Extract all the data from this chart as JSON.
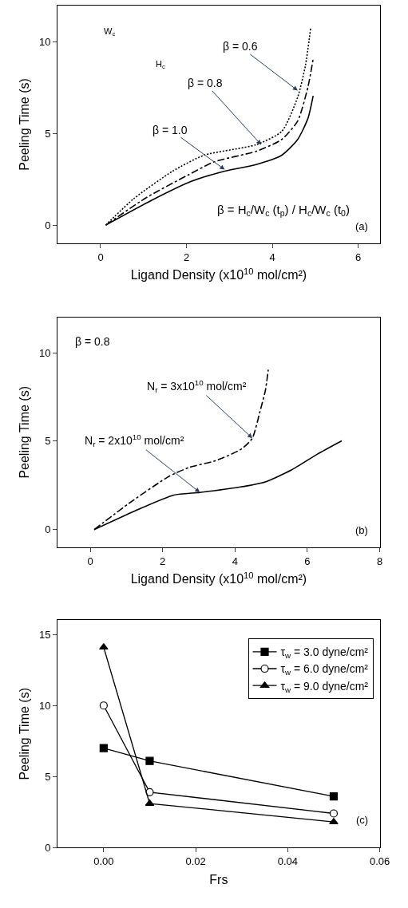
{
  "chart_data": [
    {
      "type": "line",
      "xlabel": "Ligand Density (x10$^{10}$ mol/cm²)",
      "ylabel": "Peeling Time (s)",
      "xlim": [
        -1,
        6.5
      ],
      "xticks": [
        0,
        2,
        4,
        6
      ],
      "ylim": [
        -1,
        12
      ],
      "yticks": [
        0,
        5,
        10
      ],
      "legend": false,
      "marker": "none",
      "series": [
        {
          "color": "#000000",
          "line_style": "solid",
          "x": [
            0.12,
            1.2,
            2.1,
            2.89,
            3.62,
            4.22,
            4.59,
            4.83,
            4.95
          ],
          "values": [
            0,
            1.37,
            2.38,
            2.95,
            3.31,
            3.82,
            4.68,
            5.84,
            7.06
          ]
        },
        {
          "color": "#000000",
          "line_style": "dashdot",
          "x": [
            0.12,
            1.07,
            2.04,
            2.65,
            3.62,
            4.22,
            4.59,
            4.83,
            4.95
          ],
          "values": [
            0,
            1.51,
            2.74,
            3.46,
            4.03,
            4.68,
            5.69,
            7.56,
            9.08
          ]
        },
        {
          "color": "#000000",
          "line_style": "dotted",
          "x": [
            0.12,
            0.77,
            1.68,
            2.41,
            3.62,
            4.22,
            4.59,
            4.77,
            4.89
          ],
          "values": [
            0,
            1.44,
            2.95,
            3.82,
            4.39,
            5.12,
            6.99,
            8.72,
            10.73
          ]
        }
      ],
      "annotations": [
        {
          "text": "β = 0.6",
          "x": 4.59,
          "y": 7.35
        },
        {
          "text": "β = 0.8",
          "x": 3.74,
          "y": 4.39
        },
        {
          "text": "β = 1.0",
          "x": 2.89,
          "y": 3.03
        },
        "β = H$_{c}$/W$_{c}$ (t$_{p}$) / H$_{c}$/W$_{c}$ (t$_{0}$)",
        "(a)",
        "W$_{c}$",
        "H$_{c}$"
      ]
    },
    {
      "type": "line",
      "xlabel": "Ligand Density (x10$^{10}$ mol/cm²)",
      "ylabel": "Peeling Time (s)",
      "xlim": [
        -0.9,
        8
      ],
      "xticks": [
        0,
        2,
        4,
        6,
        8
      ],
      "ylim": [
        -1,
        12
      ],
      "yticks": [
        0,
        5,
        10
      ],
      "legend": false,
      "marker": "none",
      "series": [
        {
          "color": "#000000",
          "line_style": "solid",
          "x": [
            0.11,
            1.23,
            2.31,
            3.03,
            4.12,
            4.84,
            5.56,
            6.28,
            6.95
          ],
          "values": [
            0,
            1.05,
            1.95,
            2.1,
            2.4,
            2.7,
            3.37,
            4.27,
            5.02
          ]
        },
        {
          "color": "#000000",
          "line_style": "dashdot",
          "x": [
            0.11,
            1.08,
            2.17,
            2.74,
            3.47,
            4.19,
            4.48,
            4.69,
            4.84,
            4.92
          ],
          "values": [
            0,
            1.5,
            3.0,
            3.52,
            3.9,
            4.57,
            5.17,
            6.67,
            7.87,
            9.04
          ]
        }
      ],
      "annotations": [
        {
          "text": "N$_{r}$ = 3x10$^{10}$ mol/cm²",
          "x": 4.48,
          "y": 5.17
        },
        {
          "text": "N$_{r}$ = 2x10$^{10}$ mol/cm²",
          "x": 3.03,
          "y": 2.1
        },
        "β = 0.8",
        "(b)"
      ]
    },
    {
      "type": "line",
      "xlabel": "Frs",
      "ylabel": "Peeling Time (s)",
      "x": [
        0,
        0.01,
        0.05
      ],
      "xlim": [
        -0.01,
        0.06
      ],
      "xticks": [
        {
          "value": 0,
          "label": "0.00"
        },
        {
          "value": 0.02,
          "label": "0.02"
        },
        {
          "value": 0.04,
          "label": "0.04"
        },
        {
          "value": 0.06,
          "label": "0.06"
        }
      ],
      "ylim": [
        0,
        16
      ],
      "yticks": [
        0,
        5,
        10,
        15
      ],
      "legend": "top right",
      "series": [
        {
          "name": "τ$_{w}$ = 3.0 dyne/cm²",
          "color": "#000000",
          "marker": "square",
          "values": [
            7.0,
            6.1,
            3.6
          ]
        },
        {
          "name": "τ$_{w}$ = 6.0 dyne/cm²",
          "color": "#000000",
          "marker": "circle-open",
          "values": [
            10.0,
            3.9,
            2.4
          ]
        },
        {
          "name": "τ$_{w}$ = 9.0 dyne/cm²",
          "color": "#000000",
          "marker": "triangle",
          "values": [
            14.1,
            3.1,
            1.8
          ]
        }
      ],
      "annotations": [
        "(c)"
      ]
    }
  ]
}
